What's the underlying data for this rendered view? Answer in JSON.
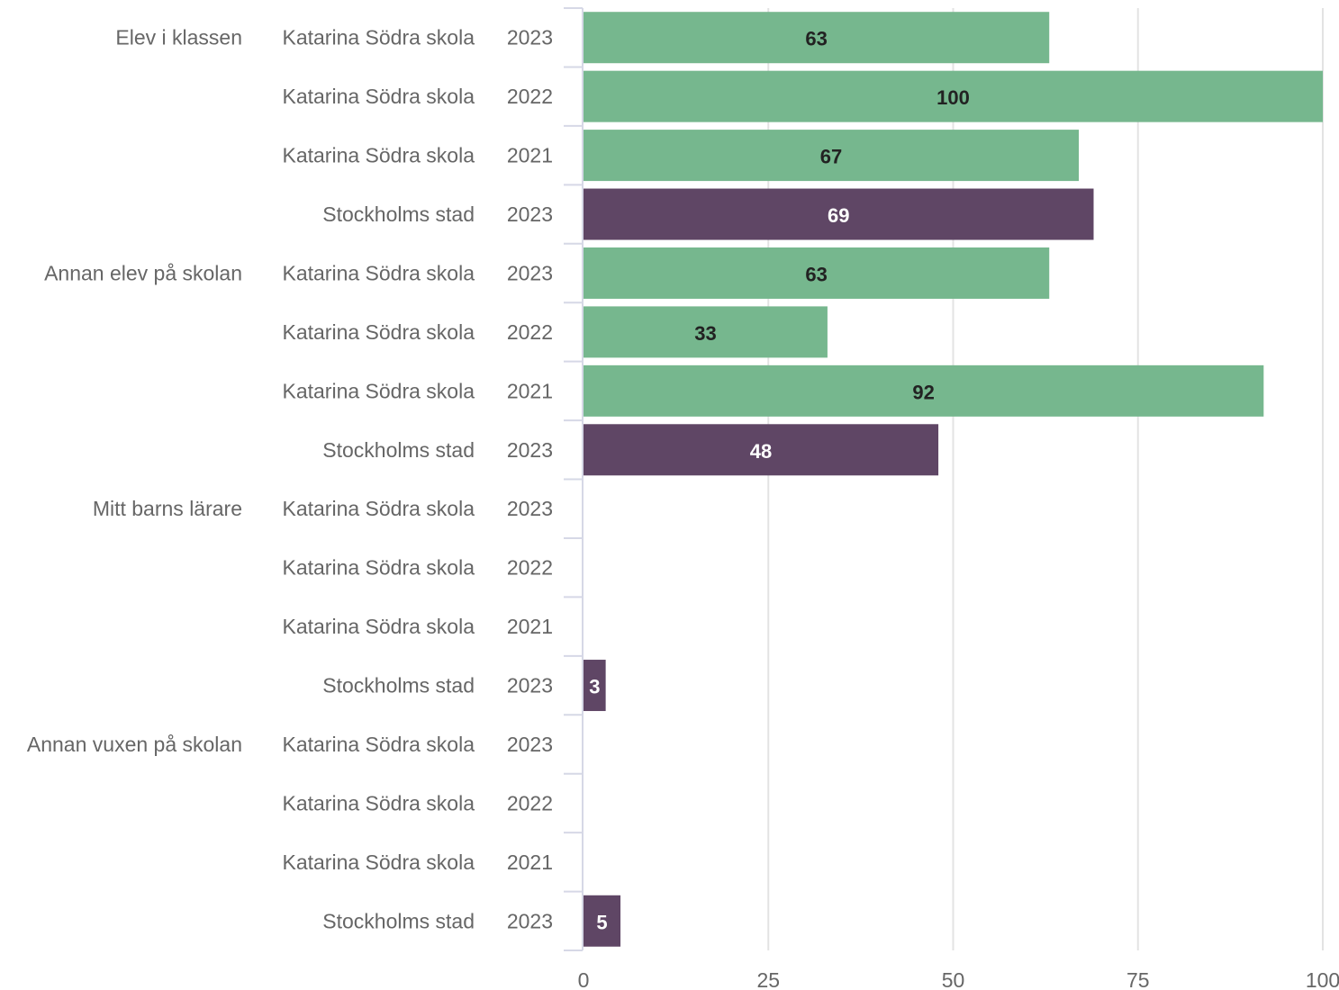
{
  "chart_data": {
    "type": "bar",
    "orientation": "horizontal",
    "xlim": [
      0,
      100
    ],
    "x_ticks": [
      "0",
      "25",
      "50",
      "75",
      "100"
    ],
    "grid": true,
    "colors": {
      "Katarina Södra skola": "#76b78e",
      "Stockholms stad": "#5f4665"
    },
    "label_colors": {
      "Katarina Södra skola": "#222222",
      "Stockholms stad": "#ffffff"
    },
    "rows": [
      {
        "group": "Elev i klassen",
        "unit": "Katarina Södra skola",
        "year": "2023",
        "value": 63
      },
      {
        "group": "",
        "unit": "Katarina Södra skola",
        "year": "2022",
        "value": 100
      },
      {
        "group": "",
        "unit": "Katarina Södra skola",
        "year": "2021",
        "value": 67
      },
      {
        "group": "",
        "unit": "Stockholms stad",
        "year": "2023",
        "value": 69
      },
      {
        "group": "Annan elev på skolan",
        "unit": "Katarina Södra skola",
        "year": "2023",
        "value": 63
      },
      {
        "group": "",
        "unit": "Katarina Södra skola",
        "year": "2022",
        "value": 33
      },
      {
        "group": "",
        "unit": "Katarina Södra skola",
        "year": "2021",
        "value": 92
      },
      {
        "group": "",
        "unit": "Stockholms stad",
        "year": "2023",
        "value": 48
      },
      {
        "group": "Mitt barns lärare",
        "unit": "Katarina Södra skola",
        "year": "2023",
        "value": null
      },
      {
        "group": "",
        "unit": "Katarina Södra skola",
        "year": "2022",
        "value": null
      },
      {
        "group": "",
        "unit": "Katarina Södra skola",
        "year": "2021",
        "value": null
      },
      {
        "group": "",
        "unit": "Stockholms stad",
        "year": "2023",
        "value": 3
      },
      {
        "group": "Annan vuxen på skolan",
        "unit": "Katarina Södra skola",
        "year": "2023",
        "value": null
      },
      {
        "group": "",
        "unit": "Katarina Södra skola",
        "year": "2022",
        "value": null
      },
      {
        "group": "",
        "unit": "Katarina Södra skola",
        "year": "2021",
        "value": null
      },
      {
        "group": "",
        "unit": "Stockholms stad",
        "year": "2023",
        "value": 5
      }
    ]
  }
}
